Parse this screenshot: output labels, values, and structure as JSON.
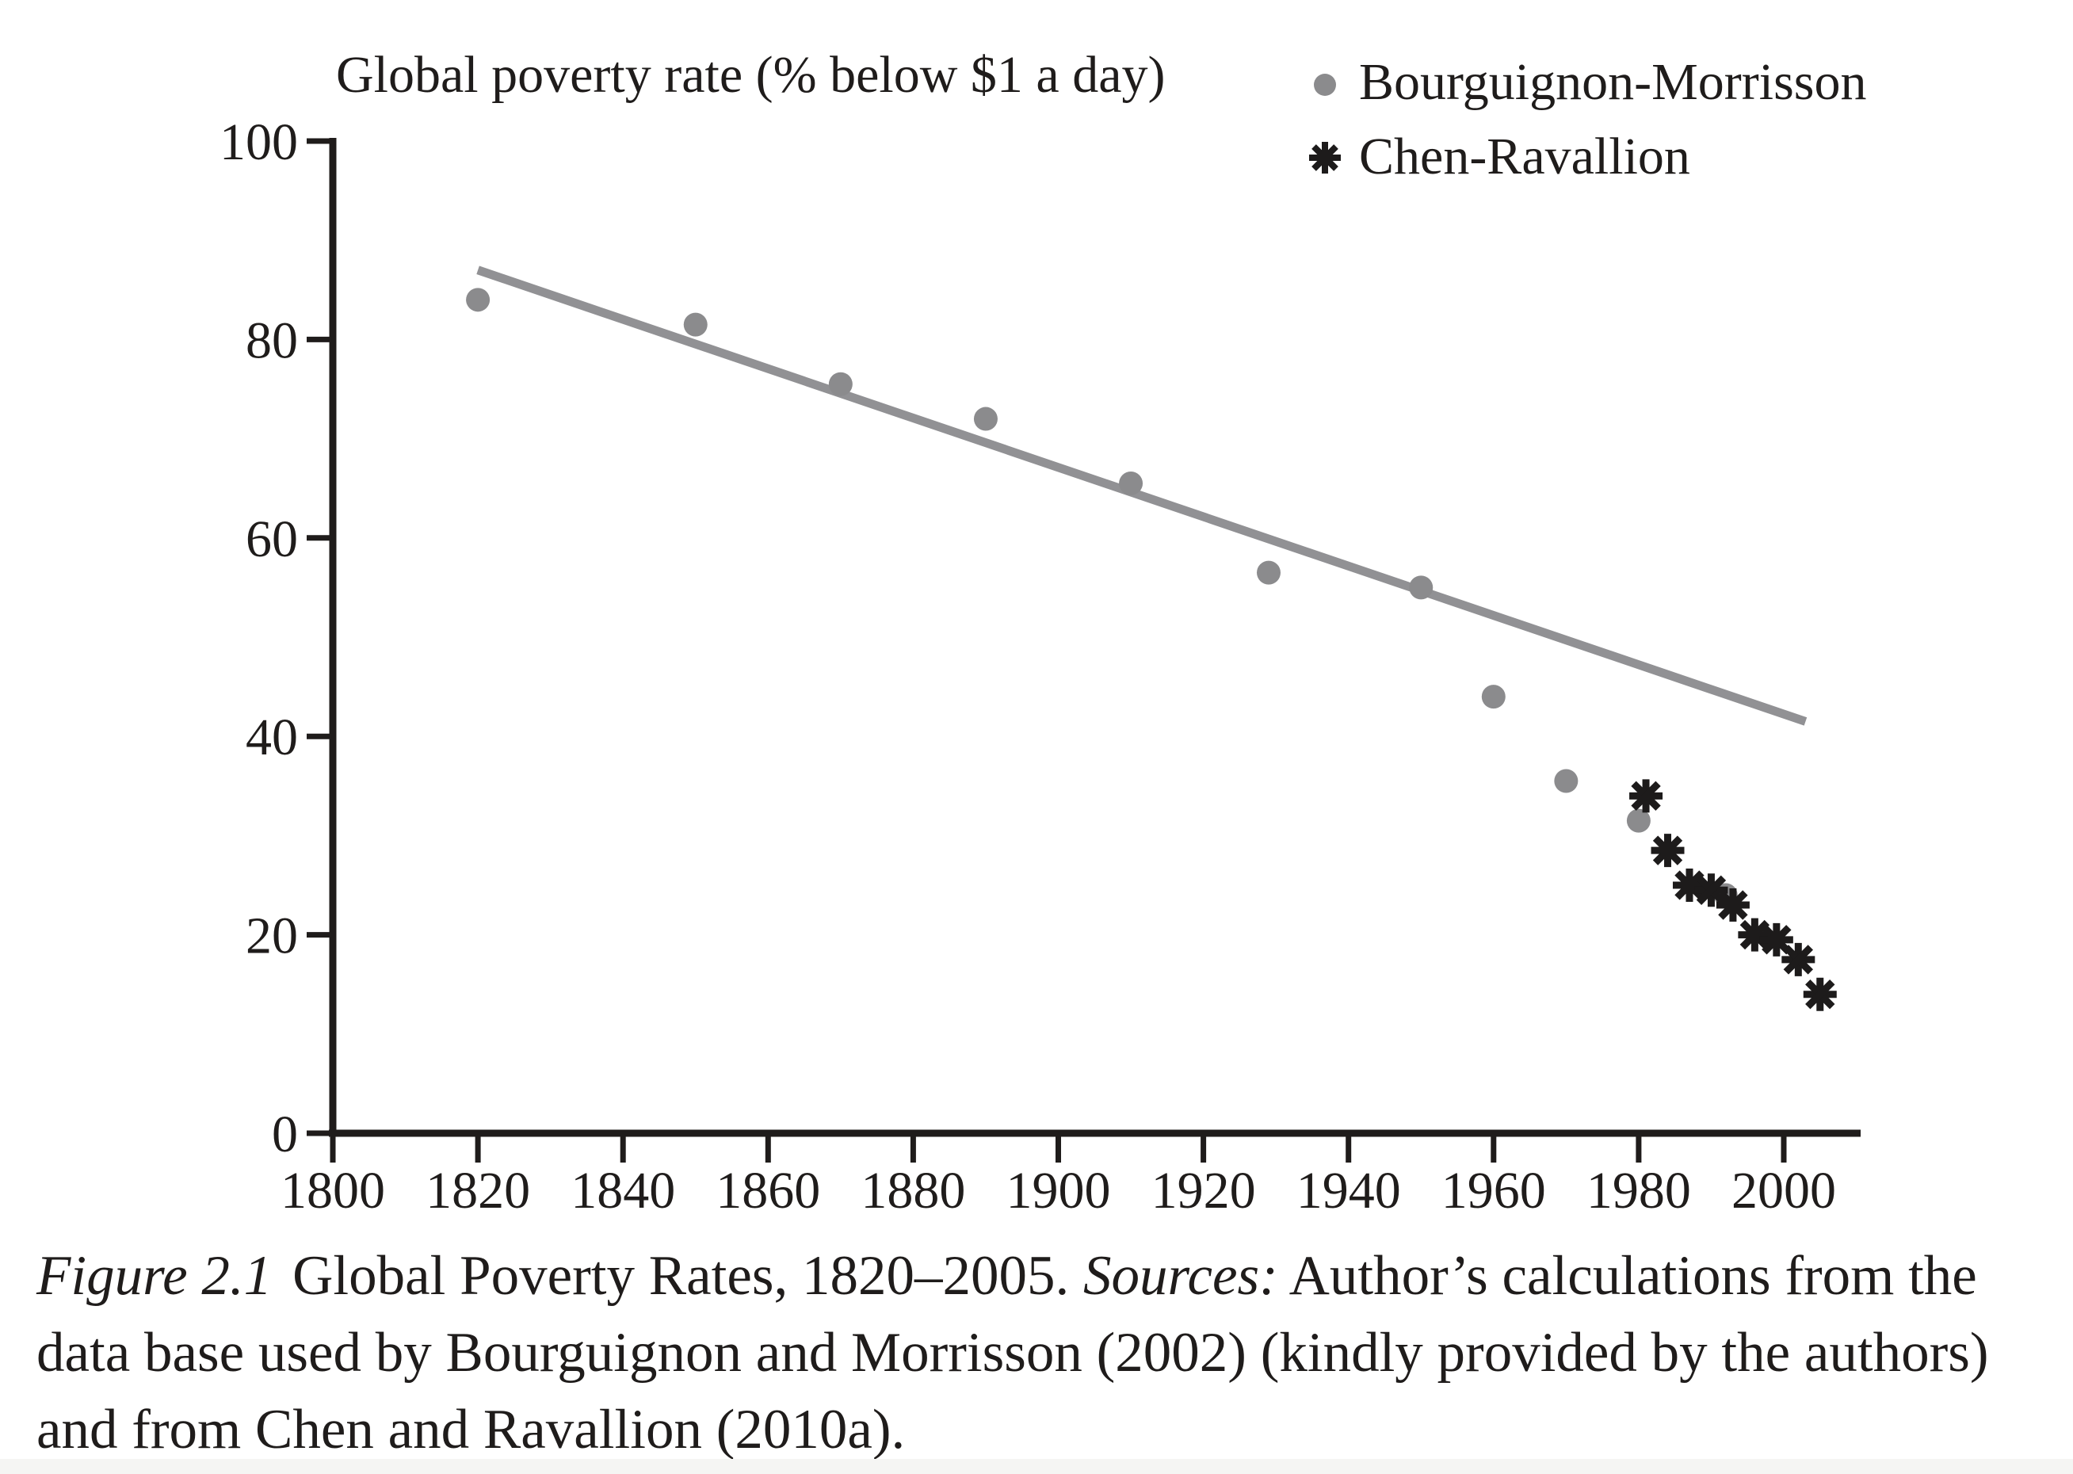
{
  "chart_data": {
    "type": "scatter",
    "title": "Global poverty rate (% below $1 a day)",
    "xlabel": "",
    "ylabel": "Global poverty rate (% below $1 a day)",
    "x_ticks": [
      1800,
      1820,
      1840,
      1860,
      1880,
      1900,
      1920,
      1940,
      1960,
      1980,
      2000
    ],
    "y_ticks": [
      0,
      20,
      40,
      60,
      80,
      100
    ],
    "xlim": [
      1800,
      2010
    ],
    "ylim": [
      0,
      100
    ],
    "grid": false,
    "legend_position": "top-right",
    "series": [
      {
        "name": "Bourguignon-Morrisson",
        "marker": "dot",
        "points": [
          [
            1820,
            84
          ],
          [
            1850,
            81.5
          ],
          [
            1870,
            75.5
          ],
          [
            1890,
            72
          ],
          [
            1910,
            65.5
          ],
          [
            1929,
            56.5
          ],
          [
            1950,
            55
          ],
          [
            1960,
            44
          ],
          [
            1970,
            35.5
          ],
          [
            1980,
            31.5
          ],
          [
            1992,
            24
          ]
        ]
      },
      {
        "name": "Chen-Ravallion",
        "marker": "asterisk",
        "points": [
          [
            1981,
            34
          ],
          [
            1984,
            28.5
          ],
          [
            1987,
            25
          ],
          [
            1990,
            24.5
          ],
          [
            1993,
            23
          ],
          [
            1996,
            20
          ],
          [
            1999,
            19.5
          ],
          [
            2002,
            17.5
          ],
          [
            2005,
            14
          ]
        ]
      }
    ],
    "trend_line": {
      "x1": 1820,
      "y1": 87,
      "x2": 2003,
      "y2": 41.5
    }
  },
  "colors": {
    "dot_gray": "#8b8b8d",
    "trend_line_gray": "#919194",
    "asterisk_black": "#1d1b1b",
    "text_black": "#1f1c1b",
    "footer_band": "#f5f5f3"
  },
  "caption": {
    "figure_label": "Figure 2.1",
    "title_text": "Global Poverty Rates, 1820–2005. ",
    "sources_label": "Sources:",
    "sources_text": " Author’s calculations from the data base used by Bourguignon and Morrisson (2002) (kindly provided by the authors) and from Chen and Ravallion (2010a)."
  }
}
